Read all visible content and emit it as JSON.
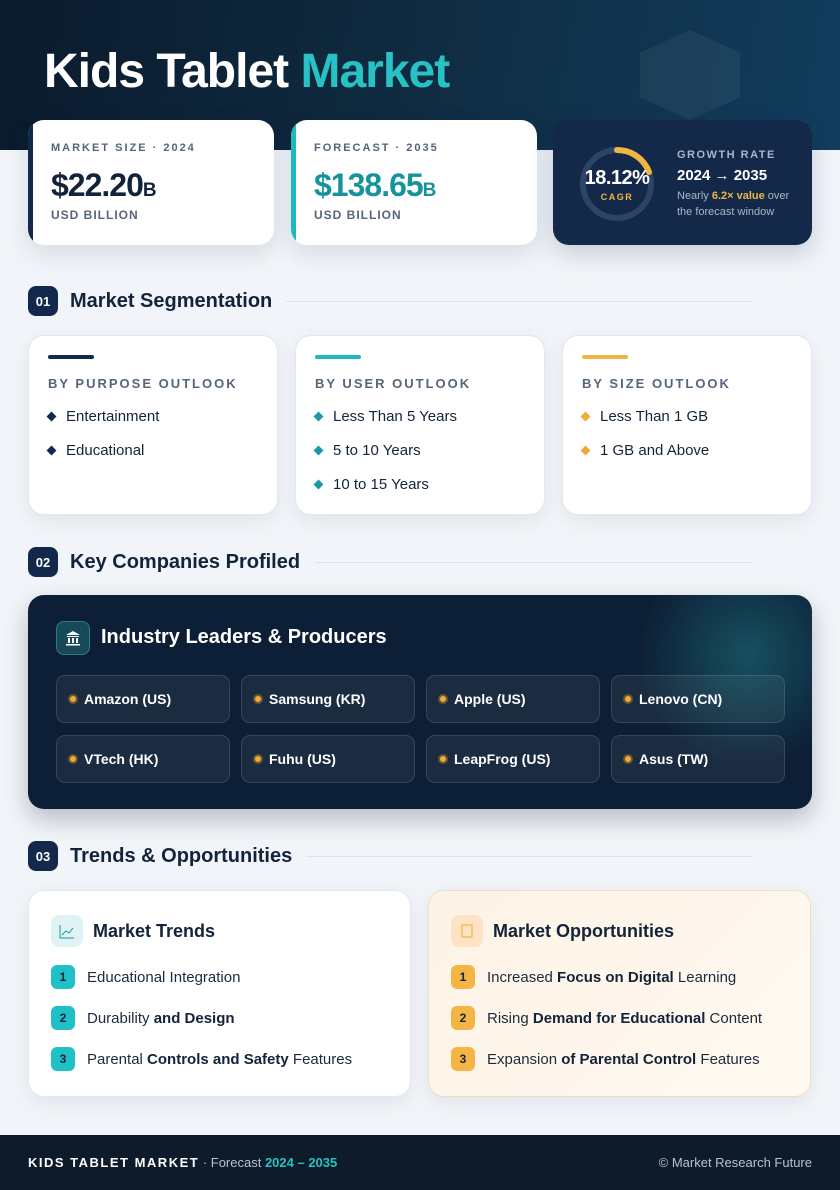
{
  "header": {
    "title": "Kids Tablet",
    "title_accent": "Market"
  },
  "stats": [
    {
      "label": "MARKET SIZE · 2024",
      "value": "$22.20",
      "suffix": "B",
      "unit": "USD BILLION"
    },
    {
      "label": "FORECAST · 2035",
      "value": "$138.65",
      "suffix": "B",
      "unit": "USD BILLION"
    }
  ],
  "growth": {
    "value": "18.12%",
    "caption": "CAGR",
    "label": "GROWTH RATE",
    "range": "2024 → 2035",
    "note": [
      {
        "text": "Nearly "
      },
      {
        "text": "6.2× value",
        "em": true
      },
      {
        "text": " over the forecast window"
      }
    ]
  },
  "segmentation": {
    "number": "01",
    "title": "Market Segmentation",
    "groups": [
      {
        "title": "BY PURPOSE OUTLOOK",
        "color": "#13294b",
        "items": [
          "Entertainment",
          "Educational"
        ]
      },
      {
        "title": "BY USER OUTLOOK",
        "color": "#1fb8c1",
        "items": [
          "Less Than 5 Years",
          "5 to 10 Years",
          "10 to 15 Years"
        ]
      },
      {
        "title": "BY SIZE OUTLOOK",
        "color": "#f0b543",
        "items": [
          "Less Than 1 GB",
          "1 GB and Above"
        ]
      }
    ]
  },
  "companies": {
    "number": "02",
    "title": "Key Companies Profiled",
    "panel_title": "Industry Leaders & Producers",
    "items": [
      "Amazon (US)",
      "Samsung (KR)",
      "Apple (US)",
      "Lenovo (CN)",
      "VTech (HK)",
      "Fuhu (US)",
      "LeapFrog (US)",
      "Asus (TW)"
    ]
  },
  "trends": {
    "number": "03",
    "title": "Trends & Opportunities",
    "cards": [
      {
        "title": "Market Trends",
        "items": [
          {
            "number": "1",
            "parts": [
              {
                "text": "Educational Integration"
              }
            ]
          },
          {
            "number": "2",
            "parts": [
              {
                "text": "Durability"
              },
              {
                "text": " and Design",
                "em": true
              }
            ]
          },
          {
            "number": "3",
            "parts": [
              {
                "text": "Parental "
              },
              {
                "text": "Controls and Safety",
                "em": true
              },
              {
                "text": " Features"
              }
            ]
          }
        ]
      },
      {
        "title": "Market Opportunities",
        "items": [
          {
            "number": "1",
            "parts": [
              {
                "text": "Increased "
              },
              {
                "text": "Focus on Digital",
                "em": true
              },
              {
                "text": " Learning"
              }
            ]
          },
          {
            "number": "2",
            "parts": [
              {
                "text": "Rising "
              },
              {
                "text": "Demand for Educational",
                "em": true
              },
              {
                "text": " Content"
              }
            ]
          },
          {
            "number": "3",
            "parts": [
              {
                "text": "Expansion "
              },
              {
                "text": "of Parental Control",
                "em": true
              },
              {
                "text": " Features"
              }
            ]
          }
        ]
      }
    ]
  },
  "footer": {
    "brand": "KIDS TABLET MARKET",
    "separator": " · Forecast ",
    "years": "2024 – 2035",
    "credit": "© Market Research Future"
  }
}
